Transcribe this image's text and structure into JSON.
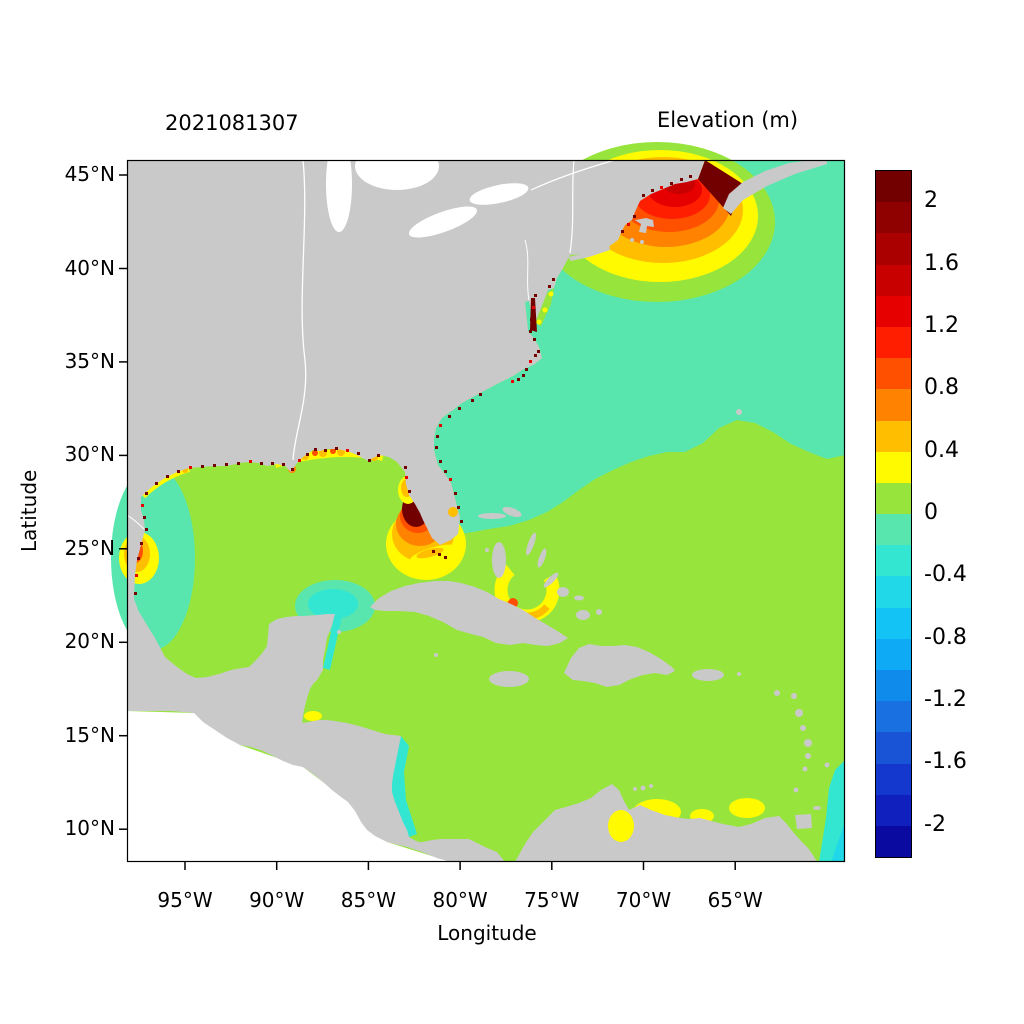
{
  "figure": {
    "timestamp_title": "2021081307",
    "variable_title": "Elevation (m)",
    "x_axis_label": "Longitude",
    "y_axis_label": "Latitude"
  },
  "chart_data": {
    "type": "heatmap",
    "variable": "Elevation (m)",
    "timestamp": "2021081307",
    "xlabel": "Longitude",
    "ylabel": "Latitude",
    "x_tick_labels": [
      "95°W",
      "90°W",
      "85°W",
      "80°W",
      "75°W",
      "70°W",
      "65°W"
    ],
    "y_tick_labels": [
      "45°N",
      "40°N",
      "35°N",
      "30°N",
      "25°N",
      "20°N",
      "15°N",
      "10°N"
    ],
    "lon_extent": [
      "98°W",
      "59°W"
    ],
    "lat_extent": [
      "8°N",
      "46°N"
    ],
    "land_color": "#c9c9c9",
    "ocean_outside_domain": "#ffffff",
    "colorbar": {
      "min": -2.2,
      "max": 2.2,
      "step": 0.2,
      "tick_labels": [
        "2",
        "1.6",
        "1.2",
        "0.8",
        "0.4",
        "0",
        "-0.4",
        "-0.8",
        "-1.2",
        "-1.6",
        "-2"
      ],
      "colors_top_to_bottom": [
        "#730000",
        "#8f0000",
        "#ab0000",
        "#c80000",
        "#e60000",
        "#ff1e00",
        "#ff5000",
        "#ff8200",
        "#ffbe00",
        "#fffa00",
        "#97e53c",
        "#58e6ae",
        "#32e6d2",
        "#20d8e8",
        "#14c3f5",
        "#0faaf5",
        "#0f8ceb",
        "#1970e1",
        "#1954d7",
        "#1438cd",
        "#0f20be",
        "#0a0aa0"
      ]
    },
    "features": [
      {
        "area": "Gulf of Mexico, Caribbean Sea and subtropical Atlantic",
        "elevation_m": "0 to 0.2"
      },
      {
        "area": "Northwest Atlantic north of ~30°N offshore of US east coast",
        "elevation_m": "-0.2 to 0"
      },
      {
        "area": "Gulf of Maine / southern New England shelf",
        "elevation_m": "0.4 to 1.6 concentric maximum"
      },
      {
        "area": "Bay of Fundy",
        "elevation_m": "greater than 2"
      },
      {
        "area": "Southwest Florida shelf (Tampa to Naples)",
        "elevation_m": "dark-red core above 1.8 with 0.4-1.0 rings"
      },
      {
        "area": "Great Bahama Bank ring northwest of Cuba",
        "elevation_m": "0.2 to 0.8"
      },
      {
        "area": "Louisiana-Mississippi-Alabama coast",
        "elevation_m": "0.2 to 0.8 with dark-red estuary speckles"
      },
      {
        "area": "Texas / northeast Mexico coast near 97.5°W 25°N",
        "elevation_m": "0.6 to 1.0 spot"
      },
      {
        "area": "Western Gulf of Mexico nearshore",
        "elevation_m": "-0.2 to 0"
      },
      {
        "area": "Northeast of Yucatán Peninsula",
        "elevation_m": "-0.4 to -0.2"
      },
      {
        "area": "Nicaragua (Mosquito) coast",
        "elevation_m": "-0.4 to -0.2"
      },
      {
        "area": "Southeast map corner near 60°W south of 12°N",
        "elevation_m": "-0.6 to -0.2"
      },
      {
        "area": "Southern Caribbean near Venezuela and Lake Maracaibo",
        "elevation_m": "0.2 to 0.4 patches"
      },
      {
        "area": "US coastal estuaries (Chesapeake, Pamlico, Maine coast, Texas lagoons)",
        "elevation_m": "speckled above 1.6 (dark red)"
      }
    ]
  }
}
